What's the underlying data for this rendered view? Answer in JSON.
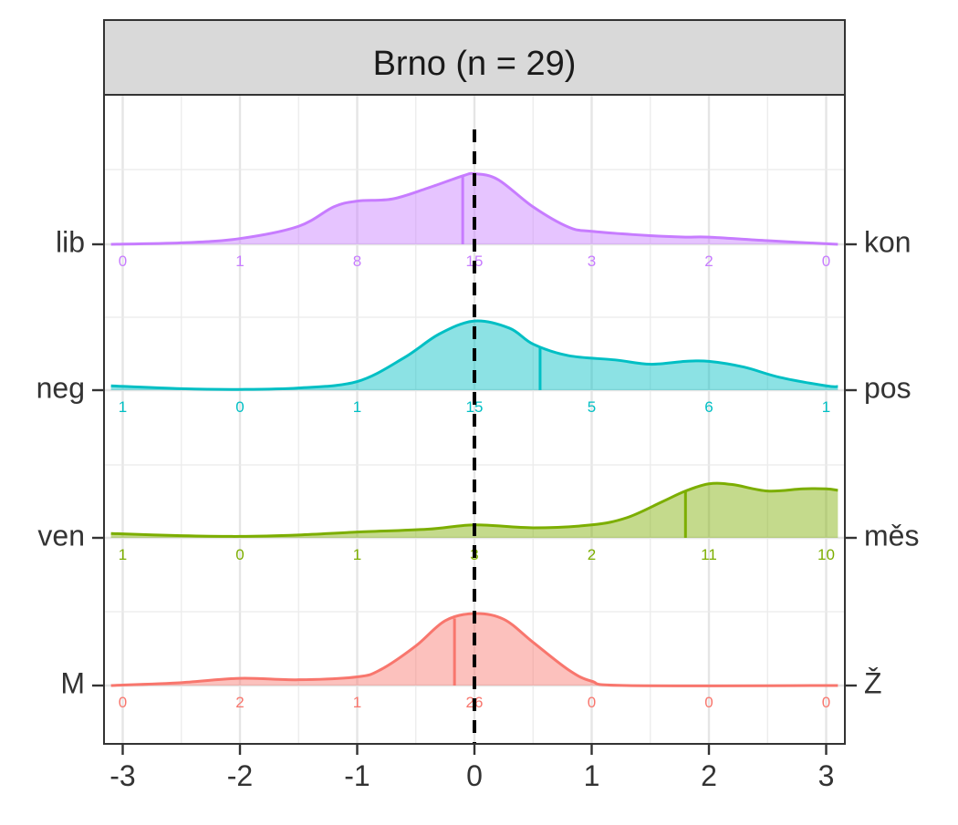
{
  "chart_data": {
    "type": "ridgeline",
    "title": "Brno (n = 29)",
    "xlim": [
      -3.1,
      3.1
    ],
    "x_ticks": [
      -3,
      -2,
      -1,
      0,
      1,
      2,
      3
    ],
    "x_tick_labels": [
      "-3",
      "-2",
      "-1",
      "0",
      "1",
      "2",
      "3"
    ],
    "grid": true,
    "reference_line_x": 0,
    "series": [
      {
        "left_label": "lib",
        "right_label": "kon",
        "color": "#C77CFF",
        "mean": -0.1,
        "count_positions": [
          -3,
          -2,
          -1,
          0,
          1,
          2,
          3
        ],
        "counts": [
          "0",
          "1",
          "8",
          "15",
          "3",
          "2",
          "0"
        ],
        "density": [
          [
            -3.1,
            0.0
          ],
          [
            -2.5,
            0.02
          ],
          [
            -2.0,
            0.08
          ],
          [
            -1.5,
            0.25
          ],
          [
            -1.2,
            0.52
          ],
          [
            -1.0,
            0.6
          ],
          [
            -0.7,
            0.63
          ],
          [
            -0.4,
            0.78
          ],
          [
            -0.1,
            0.95
          ],
          [
            0.0,
            0.98
          ],
          [
            0.2,
            0.9
          ],
          [
            0.5,
            0.52
          ],
          [
            0.8,
            0.24
          ],
          [
            1.0,
            0.18
          ],
          [
            1.5,
            0.12
          ],
          [
            1.8,
            0.1
          ],
          [
            2.0,
            0.1
          ],
          [
            2.5,
            0.05
          ],
          [
            3.1,
            0.0
          ]
        ]
      },
      {
        "left_label": "neg",
        "right_label": "pos",
        "color": "#00BFC4",
        "mean": 0.56,
        "count_positions": [
          -3,
          -2,
          -1,
          0,
          1,
          2,
          3
        ],
        "counts": [
          "1",
          "0",
          "1",
          "15",
          "5",
          "6",
          "1"
        ],
        "density": [
          [
            -3.1,
            0.06
          ],
          [
            -2.5,
            0.02
          ],
          [
            -2.0,
            0.01
          ],
          [
            -1.5,
            0.03
          ],
          [
            -1.0,
            0.12
          ],
          [
            -0.6,
            0.45
          ],
          [
            -0.3,
            0.78
          ],
          [
            0.0,
            0.96
          ],
          [
            0.3,
            0.86
          ],
          [
            0.5,
            0.64
          ],
          [
            0.8,
            0.48
          ],
          [
            1.2,
            0.42
          ],
          [
            1.5,
            0.36
          ],
          [
            1.8,
            0.4
          ],
          [
            2.0,
            0.4
          ],
          [
            2.3,
            0.32
          ],
          [
            2.6,
            0.18
          ],
          [
            3.0,
            0.06
          ],
          [
            3.1,
            0.05
          ]
        ]
      },
      {
        "left_label": "ven",
        "right_label": "měs",
        "color": "#7CAE00",
        "mean": 1.8,
        "count_positions": [
          -3,
          -2,
          -1,
          0,
          1,
          2,
          3
        ],
        "counts": [
          "1",
          "0",
          "1",
          "3",
          "2",
          "11",
          "10"
        ],
        "density": [
          [
            -3.1,
            0.06
          ],
          [
            -2.5,
            0.03
          ],
          [
            -2.0,
            0.02
          ],
          [
            -1.5,
            0.04
          ],
          [
            -1.0,
            0.08
          ],
          [
            -0.4,
            0.12
          ],
          [
            0.0,
            0.18
          ],
          [
            0.5,
            0.14
          ],
          [
            1.0,
            0.18
          ],
          [
            1.3,
            0.28
          ],
          [
            1.6,
            0.5
          ],
          [
            1.8,
            0.65
          ],
          [
            2.0,
            0.75
          ],
          [
            2.2,
            0.74
          ],
          [
            2.5,
            0.65
          ],
          [
            2.8,
            0.68
          ],
          [
            3.0,
            0.68
          ],
          [
            3.1,
            0.66
          ]
        ]
      },
      {
        "left_label": "M",
        "right_label": "Ž",
        "color": "#F8766D",
        "mean": -0.17,
        "count_positions": [
          -3,
          -2,
          -1,
          0,
          1,
          2,
          3
        ],
        "counts": [
          "0",
          "2",
          "1",
          "26",
          "0",
          "0",
          "0"
        ],
        "density": [
          [
            -3.1,
            0.0
          ],
          [
            -2.5,
            0.04
          ],
          [
            -2.0,
            0.1
          ],
          [
            -1.5,
            0.08
          ],
          [
            -1.0,
            0.12
          ],
          [
            -0.8,
            0.22
          ],
          [
            -0.5,
            0.55
          ],
          [
            -0.25,
            0.9
          ],
          [
            0.0,
            1.0
          ],
          [
            0.25,
            0.92
          ],
          [
            0.5,
            0.6
          ],
          [
            0.8,
            0.22
          ],
          [
            1.0,
            0.06
          ],
          [
            1.3,
            0.0
          ],
          [
            3.1,
            0.0
          ]
        ]
      }
    ]
  }
}
